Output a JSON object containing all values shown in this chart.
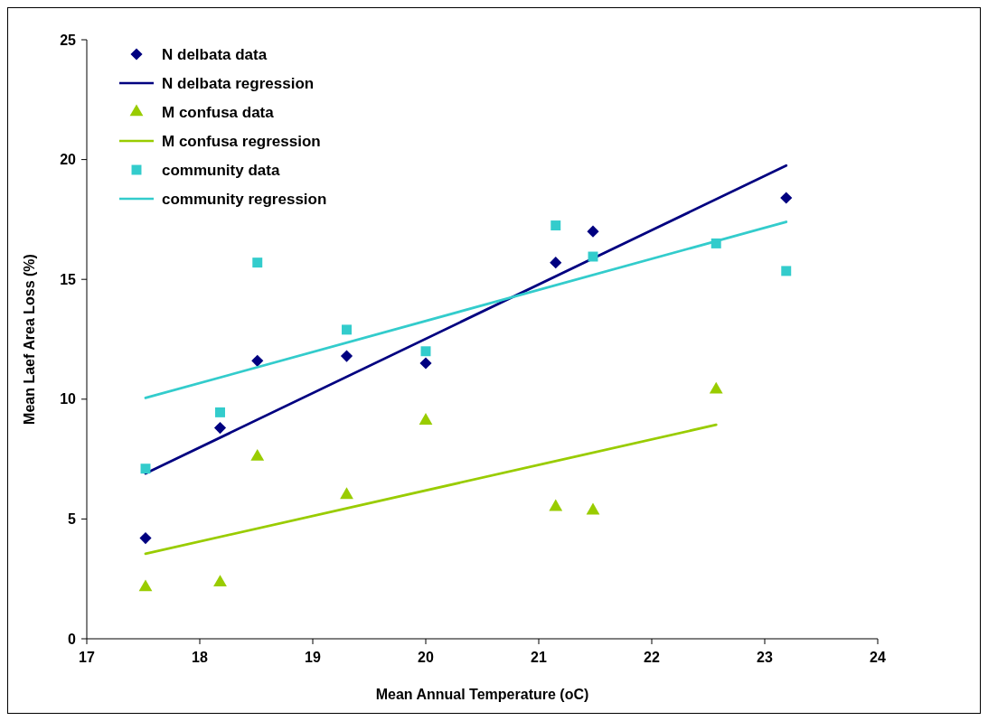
{
  "chart_data": {
    "type": "scatter",
    "xlabel": "Mean Annual Temperature (oC)",
    "ylabel": "Mean Laef Area Loss (%)",
    "xlim": [
      17,
      24
    ],
    "xticks": [
      17,
      18,
      19,
      20,
      21,
      22,
      23,
      24
    ],
    "ylim": [
      0,
      25
    ],
    "yticks": [
      0,
      5,
      10,
      15,
      20,
      25
    ],
    "grid": false,
    "legend": "top left",
    "series": [
      {
        "name": "N delbata data",
        "marker": "diamond",
        "color": "#000080",
        "x": [
          17.52,
          18.18,
          18.51,
          19.3,
          20.0,
          21.15,
          21.48,
          23.19
        ],
        "values": [
          4.2,
          8.8,
          11.6,
          11.8,
          11.5,
          15.7,
          17.0,
          18.4
        ]
      },
      {
        "name": "N delbata regression",
        "type": "line",
        "color": "#000080",
        "x": [
          17.52,
          23.19
        ],
        "values": [
          6.9,
          19.75
        ]
      },
      {
        "name": "M confusa data",
        "marker": "triangle",
        "color": "#99cc00",
        "x": [
          17.52,
          18.18,
          18.51,
          19.3,
          20.0,
          21.15,
          21.48,
          22.57
        ],
        "values": [
          2.15,
          2.35,
          7.6,
          6.0,
          9.1,
          5.5,
          5.35,
          10.4
        ]
      },
      {
        "name": "M confusa regression",
        "type": "line",
        "color": "#99cc00",
        "x": [
          17.52,
          22.57
        ],
        "values": [
          3.55,
          8.93
        ]
      },
      {
        "name": "community data",
        "marker": "square",
        "color": "#33cccc",
        "x": [
          17.52,
          18.18,
          18.51,
          19.3,
          20.0,
          21.15,
          21.48,
          22.57,
          23.19
        ],
        "values": [
          7.1,
          9.45,
          15.7,
          12.9,
          12.0,
          17.25,
          15.95,
          16.5,
          15.35
        ]
      },
      {
        "name": "community regression",
        "type": "line",
        "color": "#33cccc",
        "x": [
          17.52,
          23.19
        ],
        "values": [
          10.05,
          17.4
        ]
      }
    ]
  }
}
